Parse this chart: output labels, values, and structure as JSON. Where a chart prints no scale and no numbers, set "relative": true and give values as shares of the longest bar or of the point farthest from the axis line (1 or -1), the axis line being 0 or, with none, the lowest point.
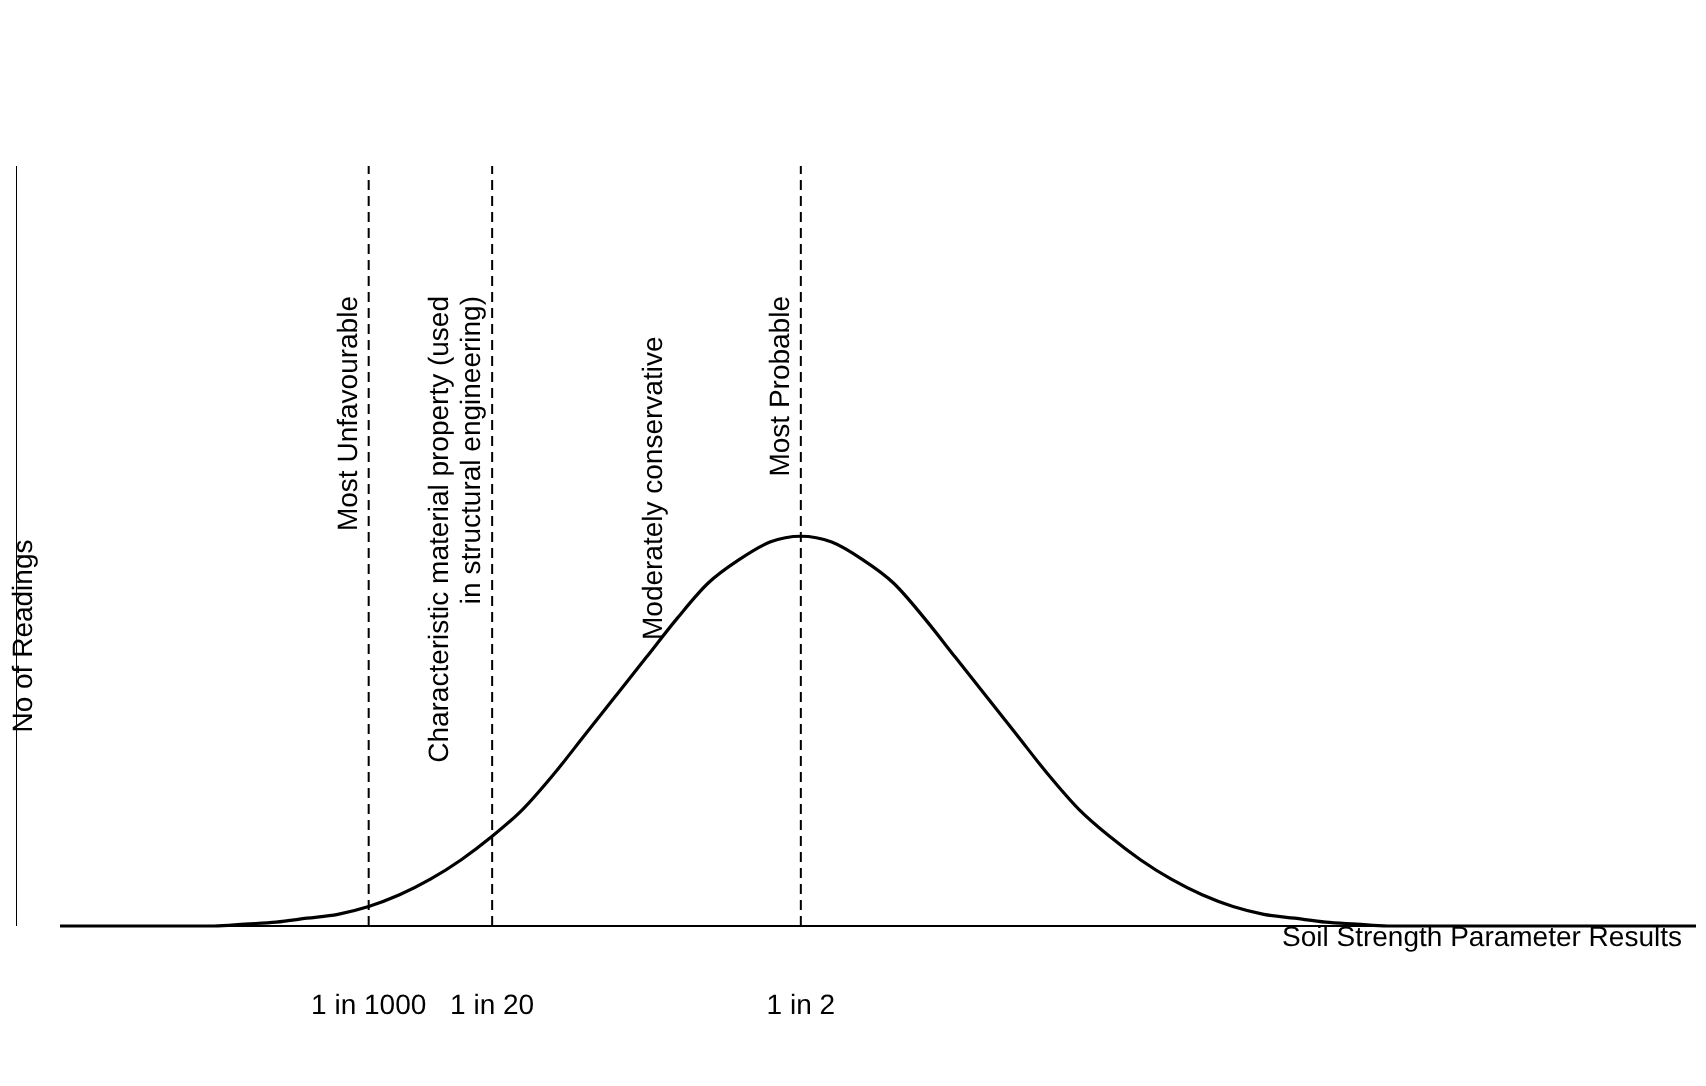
{
  "chart_data": {
    "type": "line",
    "relative": true,
    "xlabel": "Soil Strength Parameter Results",
    "ylabel": "No of Readings",
    "categories": [
      null,
      null,
      null,
      null,
      null,
      null,
      null,
      null,
      null,
      null,
      "1 in 1000",
      null,
      null,
      null,
      "1 in 20",
      null,
      null,
      null,
      null,
      null,
      null,
      null,
      null,
      null,
      "1 in 2",
      null,
      null,
      null,
      null,
      null,
      null,
      null,
      null,
      null,
      null,
      null,
      null,
      null,
      null,
      null,
      null,
      null,
      null,
      null,
      null,
      null,
      null,
      null,
      null,
      null,
      null,
      null,
      null,
      null
    ],
    "series": [
      {
        "color": "#000000",
        "values": [
          0,
          0,
          0,
          0,
          0,
          0,
          0.005,
          0.01,
          0.02,
          0.03,
          0.05,
          0.08,
          0.12,
          0.17,
          0.23,
          0.3,
          0.39,
          0.49,
          0.59,
          0.69,
          0.79,
          0.88,
          0.94,
          0.985,
          1,
          0.985,
          0.94,
          0.88,
          0.79,
          0.69,
          0.59,
          0.49,
          0.39,
          0.3,
          0.23,
          0.17,
          0.12,
          0.08,
          0.05,
          0.03,
          0.02,
          0.01,
          0.005,
          0,
          0,
          0,
          0,
          0,
          0,
          0,
          0,
          0,
          0,
          0
        ]
      }
    ],
    "ref_lines": [
      {
        "axis": "x",
        "value": "1 in 1000",
        "label": "Most Unfavourable",
        "line_style": "dashed"
      },
      {
        "axis": "x",
        "value": "1 in 20",
        "label": "Characteristic material property (used in structural engineering)",
        "line_style": "dashed"
      },
      {
        "axis": "x",
        "value": "1 in 2",
        "label": "Most Probable",
        "line_style": "dashed"
      }
    ],
    "annotations": [
      {
        "text": "Moderately conservative"
      }
    ],
    "marker": "none"
  }
}
